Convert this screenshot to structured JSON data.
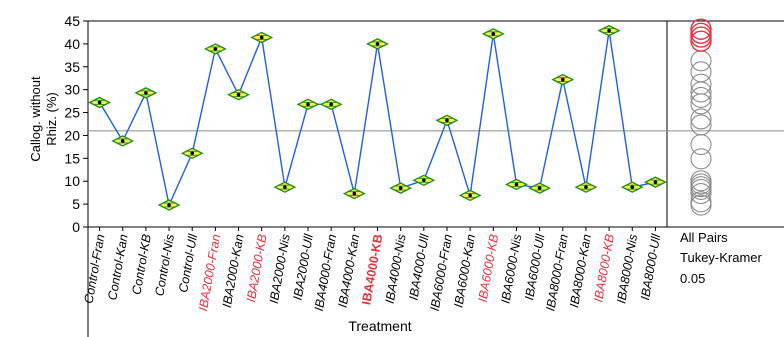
{
  "chart_data": {
    "type": "line",
    "ylabel": "Callog. without Rhiz. (%)",
    "xlabel": "Treatment",
    "ylim": [
      0,
      45
    ],
    "yticks": [
      0,
      5,
      10,
      15,
      20,
      25,
      30,
      35,
      40,
      45
    ],
    "grand_mean": 21,
    "categories": [
      "Control-Fran",
      "Control-Kan",
      "Control-KB",
      "Control-Nis",
      "Control-Ull",
      "IBA2000-Fran",
      "IBA2000-Kan",
      "IBA2000-KB",
      "IBA2000-Nis",
      "IBA2000-Ull",
      "IBA4000-Fran",
      "IBA4000-Kan",
      "IBA4000-KB",
      "IBA4000-Nis",
      "IBA4000-Ull",
      "IBA6000-Fran",
      "IBA6000-Kan",
      "IBA6000-KB",
      "IBA6000-Nis",
      "IBA6000-Ull",
      "IBA8000-Fran",
      "IBA8000-Kan",
      "IBA8000-KB",
      "IBA8000-Nis",
      "IBA8000-Ull"
    ],
    "values": [
      27.2,
      18.8,
      29.3,
      4.8,
      16.1,
      38.9,
      28.9,
      41.4,
      8.7,
      26.8,
      26.8,
      7.3,
      40.0,
      8.5,
      10.2,
      23.3,
      6.9,
      42.2,
      9.3,
      8.5,
      32.2,
      8.7,
      42.9,
      8.7,
      9.8
    ],
    "highlighted_categories": [
      "IBA2000-Fran",
      "IBA2000-KB",
      "IBA4000-KB",
      "IBA6000-KB",
      "IBA8000-KB"
    ],
    "bold_categories": [
      "IBA4000-KB"
    ],
    "comparison_circles": {
      "test_labels": [
        "All Pairs",
        "Tukey-Kramer",
        "0.05"
      ],
      "highlighted": [
        43.2,
        42.3,
        41.5,
        40.6
      ],
      "others": [
        36.3,
        33.9,
        31.2,
        29.5,
        28.3,
        26.9,
        23.6,
        22.3,
        18.0,
        14.9,
        10.1,
        9.4,
        8.8,
        8.2,
        7.3,
        5.5,
        4.8
      ]
    }
  },
  "colors": {
    "line": "#1f5fe0",
    "diamond_fill": "#f4ef4a",
    "diamond_stroke": "#1f8a1f",
    "highlight": "#e8303e",
    "circle_other": "#8a8a8a",
    "grid": "#8a8a8a"
  }
}
